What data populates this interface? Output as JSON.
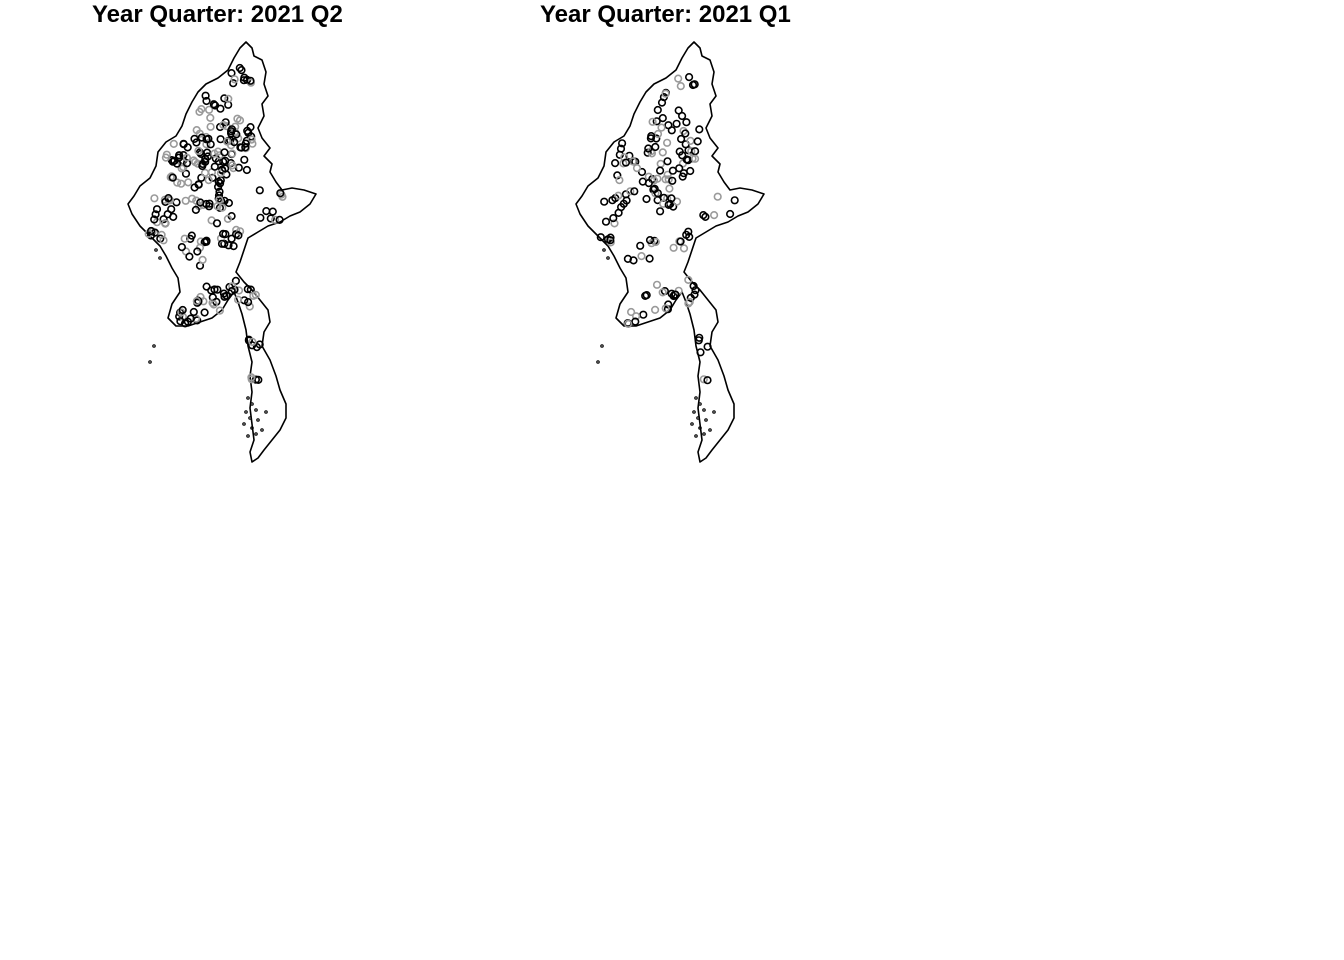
{
  "panels": [
    {
      "id": "q2",
      "title": "Year Quarter: 2021 Q2",
      "density": 1.0
    },
    {
      "id": "q1",
      "title": "Year Quarter: 2021 Q1",
      "density": 0.62
    }
  ],
  "colors": {
    "outline": "#000000",
    "point_dark": "#000000",
    "point_light": "#9a9a9a",
    "background": "#ffffff"
  },
  "point_shape": "open-circle"
}
